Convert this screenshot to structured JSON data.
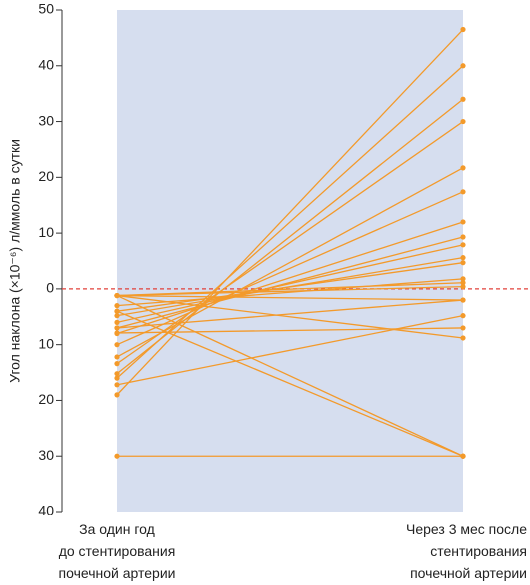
{
  "chart_data": {
    "type": "slope",
    "y_label": "Угол наклона (×10⁻⁶) л/ммоль в сутки",
    "categories": [
      "За один год\nдо стентирования\nпочечной артерии",
      "Через 3 мес после\nстентирования\nпочечной артерии"
    ],
    "color": "#f39a2b",
    "reference_line": 0,
    "reference_color": "#e2403a",
    "ylim": [
      -40,
      50
    ],
    "yticks": [
      {
        "value": -40,
        "label": "40"
      },
      {
        "value": -30,
        "label": "30"
      },
      {
        "value": -20,
        "label": "20"
      },
      {
        "value": -10,
        "label": "10"
      },
      0,
      10,
      20,
      30,
      40,
      50
    ],
    "series": [
      {
        "values": [
          -19,
          46.5
        ]
      },
      {
        "values": [
          -16,
          40
        ]
      },
      {
        "values": [
          -15.2,
          34
        ]
      },
      {
        "values": [
          -13.4,
          30
        ]
      },
      {
        "values": [
          -12.2,
          21.7
        ]
      },
      {
        "values": [
          -10,
          17.4
        ]
      },
      {
        "values": [
          -8,
          12
        ]
      },
      {
        "values": [
          -7,
          9.3
        ]
      },
      {
        "values": [
          -6,
          7.9
        ]
      },
      {
        "values": [
          -4.8,
          5.6
        ]
      },
      {
        "values": [
          -4,
          4.7
        ]
      },
      {
        "values": [
          -3,
          1.8
        ]
      },
      {
        "values": [
          -1.2,
          1.1
        ]
      },
      {
        "values": [
          -1.2,
          0.4
        ]
      },
      {
        "values": [
          -1.2,
          -2
        ]
      },
      {
        "values": [
          -17.2,
          -4.8
        ]
      },
      {
        "values": [
          -7.9,
          -7
        ]
      },
      {
        "values": [
          -1.2,
          -8.8
        ]
      },
      {
        "values": [
          -1.2,
          -30
        ]
      },
      {
        "values": [
          -4,
          -30
        ]
      },
      {
        "values": [
          -30,
          -30
        ]
      },
      {
        "values": [
          -7,
          -2
        ]
      }
    ]
  }
}
